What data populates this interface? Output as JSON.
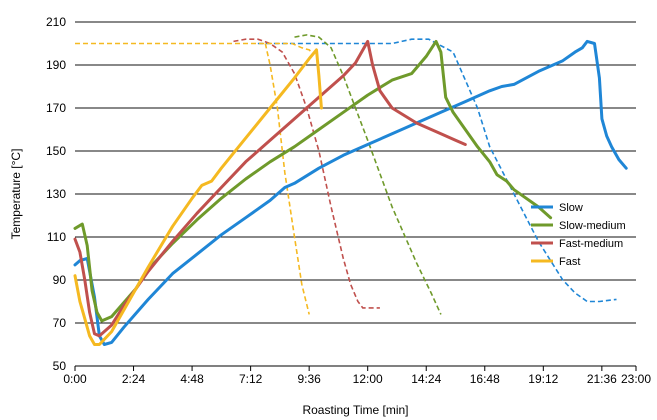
{
  "chart_data": {
    "type": "line",
    "title": "",
    "xlabel": "Roasting Time [min]",
    "ylabel": "Temperature [°C]",
    "x_unit": "minutes",
    "xlim": [
      0,
      23
    ],
    "ylim": [
      50,
      210
    ],
    "x_tick_labels": [
      "0:00",
      "2:24",
      "4:48",
      "7:12",
      "9:36",
      "12:00",
      "14:24",
      "16:48",
      "19:12",
      "21:36",
      "23:00"
    ],
    "x_tick_values": [
      0,
      2.4,
      4.8,
      7.2,
      9.6,
      12.0,
      14.4,
      16.8,
      19.2,
      21.6,
      23.0
    ],
    "y_tick_values": [
      50,
      70,
      90,
      110,
      130,
      150,
      170,
      190,
      210
    ],
    "grid": "horizontal",
    "legend_position": "right",
    "series": [
      {
        "name": "Slow",
        "color": "#1f86d6",
        "solid": [
          [
            0,
            97
          ],
          [
            0.2,
            99
          ],
          [
            0.5,
            100
          ],
          [
            0.8,
            82
          ],
          [
            1.0,
            64
          ],
          [
            1.2,
            60
          ],
          [
            1.5,
            61
          ],
          [
            2.0,
            68
          ],
          [
            3.0,
            81
          ],
          [
            4.0,
            93
          ],
          [
            5.0,
            102
          ],
          [
            6.0,
            111
          ],
          [
            7.0,
            119
          ],
          [
            8.0,
            127
          ],
          [
            8.6,
            133
          ],
          [
            9.0,
            135
          ],
          [
            10.0,
            142
          ],
          [
            11.0,
            148
          ],
          [
            12.0,
            153
          ],
          [
            13.0,
            158
          ],
          [
            14.0,
            163
          ],
          [
            15.0,
            168
          ],
          [
            16.0,
            173
          ],
          [
            17.0,
            178
          ],
          [
            17.5,
            180
          ],
          [
            18.0,
            181
          ],
          [
            19.0,
            187
          ],
          [
            20.0,
            192
          ],
          [
            20.5,
            196
          ],
          [
            20.8,
            198
          ],
          [
            21.0,
            201
          ],
          [
            21.3,
            200
          ],
          [
            21.5,
            184
          ],
          [
            21.6,
            165
          ],
          [
            21.8,
            157
          ],
          [
            22.0,
            152
          ],
          [
            22.3,
            146
          ],
          [
            22.6,
            142
          ]
        ],
        "dashed": [
          [
            7.5,
            200
          ],
          [
            13.0,
            200
          ],
          [
            13.8,
            202
          ],
          [
            14.5,
            202
          ],
          [
            15.5,
            196
          ],
          [
            16.5,
            170
          ],
          [
            17.0,
            152
          ],
          [
            18.0,
            130
          ],
          [
            19.0,
            108
          ],
          [
            20.0,
            90
          ],
          [
            20.5,
            84
          ],
          [
            21.0,
            80
          ],
          [
            21.5,
            80
          ],
          [
            22.2,
            81
          ]
        ]
      },
      {
        "name": "Slow-medium",
        "color": "#6f9a2b",
        "solid": [
          [
            0,
            114
          ],
          [
            0.3,
            116
          ],
          [
            0.5,
            106
          ],
          [
            0.7,
            85
          ],
          [
            0.9,
            75
          ],
          [
            1.1,
            71
          ],
          [
            1.5,
            73
          ],
          [
            2.5,
            86
          ],
          [
            3.0,
            95
          ],
          [
            4.0,
            107
          ],
          [
            5.0,
            118
          ],
          [
            6.0,
            128
          ],
          [
            7.0,
            137
          ],
          [
            8.0,
            145
          ],
          [
            9.0,
            152
          ],
          [
            10.0,
            160
          ],
          [
            11.0,
            168
          ],
          [
            12.0,
            176
          ],
          [
            13.0,
            183
          ],
          [
            13.8,
            186
          ],
          [
            14.4,
            194
          ],
          [
            14.8,
            201
          ],
          [
            15.0,
            196
          ],
          [
            15.2,
            175
          ],
          [
            15.5,
            168
          ],
          [
            16.0,
            160
          ],
          [
            16.5,
            152
          ],
          [
            17.0,
            145
          ],
          [
            17.3,
            139
          ],
          [
            17.7,
            136
          ],
          [
            18.0,
            132
          ],
          [
            19.0,
            124
          ],
          [
            19.5,
            119
          ]
        ],
        "dashed": [
          [
            9.0,
            203
          ],
          [
            9.5,
            204
          ],
          [
            10.0,
            203
          ],
          [
            10.5,
            198
          ],
          [
            11.0,
            185
          ],
          [
            12.0,
            155
          ],
          [
            13.0,
            124
          ],
          [
            14.0,
            98
          ],
          [
            14.6,
            84
          ],
          [
            15.0,
            74
          ]
        ]
      },
      {
        "name": "Fast-medium",
        "color": "#c0504d",
        "solid": [
          [
            0,
            109
          ],
          [
            0.2,
            103
          ],
          [
            0.4,
            90
          ],
          [
            0.6,
            75
          ],
          [
            0.8,
            65
          ],
          [
            1.0,
            64
          ],
          [
            1.5,
            69
          ],
          [
            2.0,
            78
          ],
          [
            3.0,
            94
          ],
          [
            4.0,
            108
          ],
          [
            5.0,
            121
          ],
          [
            6.0,
            133
          ],
          [
            7.0,
            145
          ],
          [
            8.0,
            155
          ],
          [
            8.5,
            160
          ],
          [
            9.0,
            165
          ],
          [
            10.0,
            175
          ],
          [
            11.0,
            185
          ],
          [
            11.5,
            191
          ],
          [
            12.0,
            201
          ],
          [
            12.2,
            190
          ],
          [
            12.5,
            178
          ],
          [
            13.0,
            170
          ],
          [
            14.0,
            163
          ],
          [
            15.0,
            158
          ],
          [
            15.6,
            155
          ],
          [
            16.0,
            153
          ]
        ],
        "dashed": [
          [
            6.5,
            201
          ],
          [
            7.0,
            202
          ],
          [
            7.5,
            202
          ],
          [
            8.0,
            200
          ],
          [
            8.5,
            196
          ],
          [
            9.0,
            186
          ],
          [
            9.5,
            170
          ],
          [
            10.0,
            150
          ],
          [
            10.5,
            124
          ],
          [
            11.0,
            100
          ],
          [
            11.3,
            88
          ],
          [
            11.6,
            80
          ],
          [
            11.8,
            77
          ],
          [
            12.5,
            77
          ]
        ]
      },
      {
        "name": "Fast",
        "color": "#f5b921",
        "solid": [
          [
            0,
            92
          ],
          [
            0.2,
            80
          ],
          [
            0.4,
            72
          ],
          [
            0.6,
            64
          ],
          [
            0.8,
            60
          ],
          [
            1.0,
            60
          ],
          [
            1.5,
            66
          ],
          [
            2.0,
            76
          ],
          [
            3.0,
            96
          ],
          [
            4.0,
            115
          ],
          [
            4.8,
            128
          ],
          [
            5.2,
            134
          ],
          [
            5.6,
            136
          ],
          [
            6.0,
            142
          ],
          [
            7.0,
            156
          ],
          [
            8.0,
            170
          ],
          [
            9.0,
            184
          ],
          [
            9.6,
            193
          ],
          [
            9.9,
            197
          ],
          [
            10.0,
            185
          ],
          [
            10.1,
            170
          ]
        ],
        "dashed": [
          [
            0,
            200
          ],
          [
            8.6,
            200
          ],
          [
            8.9,
            200
          ],
          [
            9.3,
            198
          ],
          [
            9.6,
            197
          ],
          [
            9.8,
            195
          ]
        ],
        "dashed_drop": [
          [
            7.8,
            200
          ],
          [
            8.0,
            190
          ],
          [
            8.3,
            170
          ],
          [
            8.6,
            140
          ],
          [
            9.0,
            110
          ],
          [
            9.3,
            88
          ],
          [
            9.6,
            74
          ]
        ]
      }
    ]
  }
}
